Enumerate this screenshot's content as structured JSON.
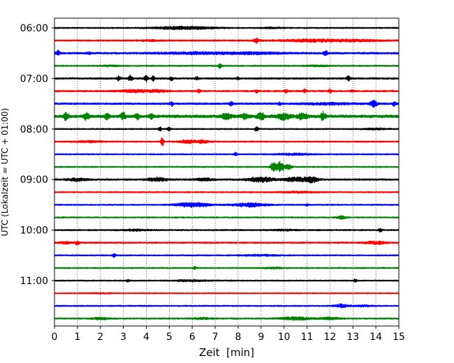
{
  "chart_data": {
    "type": "helicorder",
    "xlabel": "Zeit  [min]",
    "ylabel": "UTC (Lokalzeit = UTC + 01:00)",
    "xlim": [
      0,
      15
    ],
    "x_ticks": [
      "0",
      "1",
      "2",
      "3",
      "4",
      "5",
      "6",
      "7",
      "8",
      "9",
      "10",
      "11",
      "12",
      "13",
      "14",
      "15"
    ],
    "y_tick_labels": [
      {
        "label": "06:00",
        "trace_index": 0
      },
      {
        "label": "07:00",
        "trace_index": 4
      },
      {
        "label": "08:00",
        "trace_index": 8
      },
      {
        "label": "09:00",
        "trace_index": 12
      },
      {
        "label": "10:00",
        "trace_index": 16
      },
      {
        "label": "11:00",
        "trace_index": 20
      }
    ],
    "trace_interval_min": 15,
    "trace_count": 24,
    "trace_colors": [
      "#000000",
      "#ff0000",
      "#0000ff",
      "#008000"
    ],
    "grid": "vertical dotted lines at every minute",
    "traces": [
      {
        "start": "06:00",
        "noise": 0.1,
        "events": [
          [
            5.5,
            0.1,
            0.9
          ],
          [
            5.8,
            0.12,
            0.8
          ],
          [
            9.5,
            0.08,
            0.3
          ]
        ]
      },
      {
        "start": "06:15",
        "noise": 0.12,
        "events": [
          [
            4.1,
            0.07,
            0.3
          ],
          [
            8.8,
            0.35,
            0.08
          ],
          [
            11,
            0.12,
            0.9
          ],
          [
            12,
            0.1,
            0.9
          ],
          [
            13.5,
            0.1,
            0.5
          ]
        ]
      },
      {
        "start": "06:30",
        "noise": 0.14,
        "events": [
          [
            0.15,
            0.35,
            0.06
          ],
          [
            1.5,
            0.25,
            0.05
          ],
          [
            6,
            0.12,
            1.0
          ],
          [
            8.5,
            0.13,
            1.0
          ],
          [
            11.8,
            0.4,
            0.06
          ]
        ]
      },
      {
        "start": "06:45",
        "noise": 0.1,
        "events": [
          [
            7.2,
            0.35,
            0.05
          ],
          [
            2.5,
            0.07,
            0.3
          ],
          [
            11.5,
            0.08,
            0.4
          ]
        ]
      },
      {
        "start": "07:00",
        "noise": 0.13,
        "events": [
          [
            2.8,
            0.45,
            0.05
          ],
          [
            3.3,
            0.45,
            0.06
          ],
          [
            4.0,
            0.45,
            0.06
          ],
          [
            4.3,
            0.35,
            0.05
          ],
          [
            5.1,
            0.3,
            0.05
          ],
          [
            6.2,
            0.22,
            0.05
          ],
          [
            8.0,
            0.2,
            0.05
          ],
          [
            12.8,
            0.45,
            0.05
          ]
        ]
      },
      {
        "start": "07:15",
        "noise": 0.12,
        "events": [
          [
            3.5,
            0.18,
            0.5
          ],
          [
            4.5,
            0.15,
            0.3
          ],
          [
            6.3,
            0.25,
            0.06
          ],
          [
            8.8,
            0.25,
            0.05
          ],
          [
            10.1,
            0.3,
            0.05
          ],
          [
            10.9,
            0.35,
            0.05
          ],
          [
            12.0,
            0.25,
            0.05
          ],
          [
            13.0,
            0.2,
            0.05
          ]
        ]
      },
      {
        "start": "07:30",
        "noise": 0.14,
        "events": [
          [
            5.1,
            0.35,
            0.05
          ],
          [
            7.7,
            0.25,
            0.06
          ],
          [
            9.8,
            0.2,
            0.05
          ],
          [
            13.9,
            0.5,
            0.1
          ],
          [
            14.8,
            0.35,
            0.05
          ],
          [
            12,
            0.12,
            0.8
          ]
        ]
      },
      {
        "start": "07:45",
        "noise": 0.22,
        "events": [
          [
            0.5,
            0.55,
            0.07
          ],
          [
            1.4,
            0.55,
            0.08
          ],
          [
            2.3,
            0.45,
            0.07
          ],
          [
            3.0,
            0.5,
            0.08
          ],
          [
            3.6,
            0.45,
            0.06
          ],
          [
            4.2,
            0.4,
            0.06
          ],
          [
            7.5,
            0.4,
            0.15
          ],
          [
            8.3,
            0.45,
            0.12
          ],
          [
            9.0,
            0.5,
            0.12
          ],
          [
            10.0,
            0.45,
            0.2
          ],
          [
            10.8,
            0.45,
            0.15
          ],
          [
            11.7,
            0.55,
            0.08
          ]
        ]
      },
      {
        "start": "08:00",
        "noise": 0.1,
        "events": [
          [
            4.6,
            0.3,
            0.05
          ],
          [
            5.0,
            0.25,
            0.05
          ],
          [
            8.8,
            0.35,
            0.05
          ],
          [
            14,
            0.1,
            0.4
          ]
        ]
      },
      {
        "start": "08:15",
        "noise": 0.11,
        "events": [
          [
            4.7,
            0.8,
            0.04
          ],
          [
            5.8,
            0.25,
            0.3
          ],
          [
            6.5,
            0.2,
            0.2
          ],
          [
            1.5,
            0.1,
            0.4
          ]
        ]
      },
      {
        "start": "08:30",
        "noise": 0.1,
        "events": [
          [
            7.9,
            0.25,
            0.05
          ],
          [
            10.5,
            0.12,
            0.5
          ]
        ]
      },
      {
        "start": "08:45",
        "noise": 0.1,
        "events": [
          [
            9.55,
            0.9,
            0.08
          ],
          [
            9.85,
            0.85,
            0.1
          ],
          [
            10.2,
            0.4,
            0.1
          ]
        ]
      },
      {
        "start": "09:00",
        "noise": 0.13,
        "events": [
          [
            1.0,
            0.2,
            0.3
          ],
          [
            4.5,
            0.25,
            0.3
          ],
          [
            6.5,
            0.18,
            0.3
          ],
          [
            9.0,
            0.35,
            0.4
          ],
          [
            10.5,
            0.3,
            0.35
          ],
          [
            11.2,
            0.4,
            0.2
          ]
        ]
      },
      {
        "start": "09:15",
        "noise": 0.1,
        "events": [
          [
            10.6,
            0.1,
            0.6
          ]
        ]
      },
      {
        "start": "09:30",
        "noise": 0.1,
        "events": [
          [
            6.0,
            0.35,
            0.5
          ],
          [
            8.5,
            0.3,
            0.5
          ],
          [
            11.0,
            0.15,
            0.05
          ]
        ]
      },
      {
        "start": "09:45",
        "noise": 0.1,
        "events": [
          [
            12.5,
            0.22,
            0.15
          ]
        ]
      },
      {
        "start": "10:00",
        "noise": 0.11,
        "events": [
          [
            14.2,
            0.3,
            0.05
          ],
          [
            3.5,
            0.1,
            0.4
          ],
          [
            10,
            0.08,
            0.4
          ]
        ]
      },
      {
        "start": "10:15",
        "noise": 0.12,
        "events": [
          [
            1.0,
            0.3,
            0.06
          ],
          [
            0.5,
            0.15,
            0.2
          ],
          [
            14.0,
            0.2,
            0.3
          ]
        ]
      },
      {
        "start": "10:30",
        "noise": 0.1,
        "events": [
          [
            2.6,
            0.3,
            0.05
          ],
          [
            9.0,
            0.1,
            0.5
          ]
        ]
      },
      {
        "start": "10:45",
        "noise": 0.1,
        "events": [
          [
            6.1,
            0.25,
            0.05
          ],
          [
            9.5,
            0.08,
            0.4
          ]
        ]
      },
      {
        "start": "11:00",
        "noise": 0.1,
        "events": [
          [
            3.2,
            0.2,
            0.05
          ],
          [
            6.0,
            0.12,
            0.5
          ],
          [
            13.1,
            0.2,
            0.05
          ]
        ]
      },
      {
        "start": "11:15",
        "noise": 0.09,
        "events": [
          [
            2,
            0.05,
            0.3
          ]
        ]
      },
      {
        "start": "11:30",
        "noise": 0.1,
        "events": [
          [
            12.5,
            0.25,
            0.2
          ],
          [
            13.5,
            0.1,
            0.3
          ]
        ]
      },
      {
        "start": "11:45",
        "noise": 0.11,
        "events": [
          [
            2.0,
            0.15,
            0.25
          ],
          [
            6.5,
            0.1,
            0.3
          ],
          [
            10.5,
            0.2,
            0.5
          ],
          [
            12.0,
            0.15,
            0.3
          ]
        ]
      }
    ]
  }
}
